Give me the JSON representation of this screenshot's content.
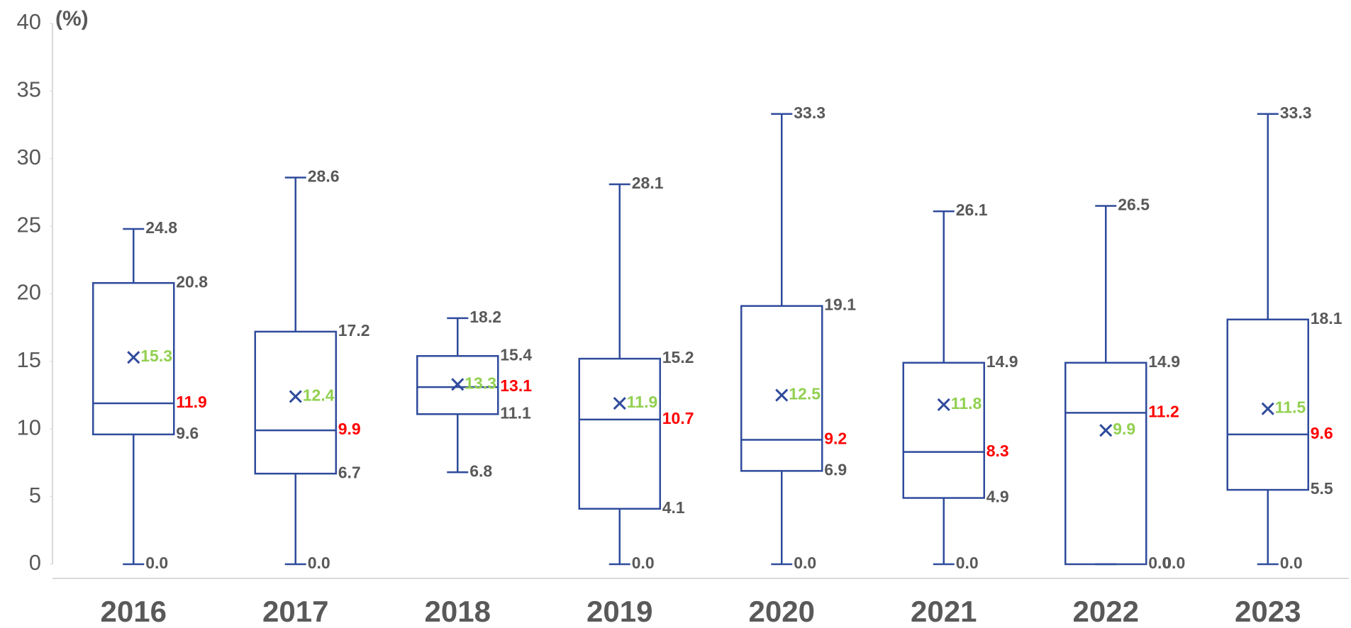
{
  "chart_data": {
    "type": "box",
    "y_label": "(%)",
    "categories": [
      "2016",
      "2017",
      "2018",
      "2019",
      "2020",
      "2021",
      "2022",
      "2023"
    ],
    "stats": {
      "min": {
        "values": [
          0,
          0,
          6.8,
          0,
          0,
          0,
          0,
          0
        ],
        "value_labels": [
          "0.0",
          "0.0",
          "6.8",
          "0.0",
          "0.0",
          "0.0",
          "0.0",
          "0.0"
        ]
      },
      "q1": {
        "values": [
          9.6,
          6.7,
          11.1,
          4.1,
          6.9,
          4.9,
          0,
          5.5
        ],
        "value_labels": [
          "9.6",
          "6.7",
          "11.1",
          "4.1",
          "6.9",
          "4.9",
          "0.0",
          "5.5"
        ]
      },
      "median": {
        "values": [
          11.9,
          9.9,
          13.1,
          10.7,
          9.2,
          8.3,
          11.2,
          9.6
        ]
      },
      "q3": {
        "values": [
          20.8,
          17.2,
          15.4,
          15.2,
          19.1,
          14.9,
          14.9,
          18.1
        ]
      },
      "max": {
        "values": [
          24.8,
          28.6,
          18.2,
          28.1,
          33.3,
          26.1,
          26.5,
          33.3
        ]
      },
      "mean": {
        "values": [
          15.3,
          12.4,
          13.3,
          11.9,
          12.5,
          11.8,
          9.9,
          11.5
        ]
      }
    },
    "box_color": "#2f4b9c",
    "median_label_color": "#ff0000",
    "mean_label_color": "#92d050",
    "label_color": "#595959",
    "ylim": [
      0,
      40
    ],
    "yticks": [
      0,
      5,
      10,
      15,
      20,
      25,
      30,
      35,
      40
    ]
  }
}
